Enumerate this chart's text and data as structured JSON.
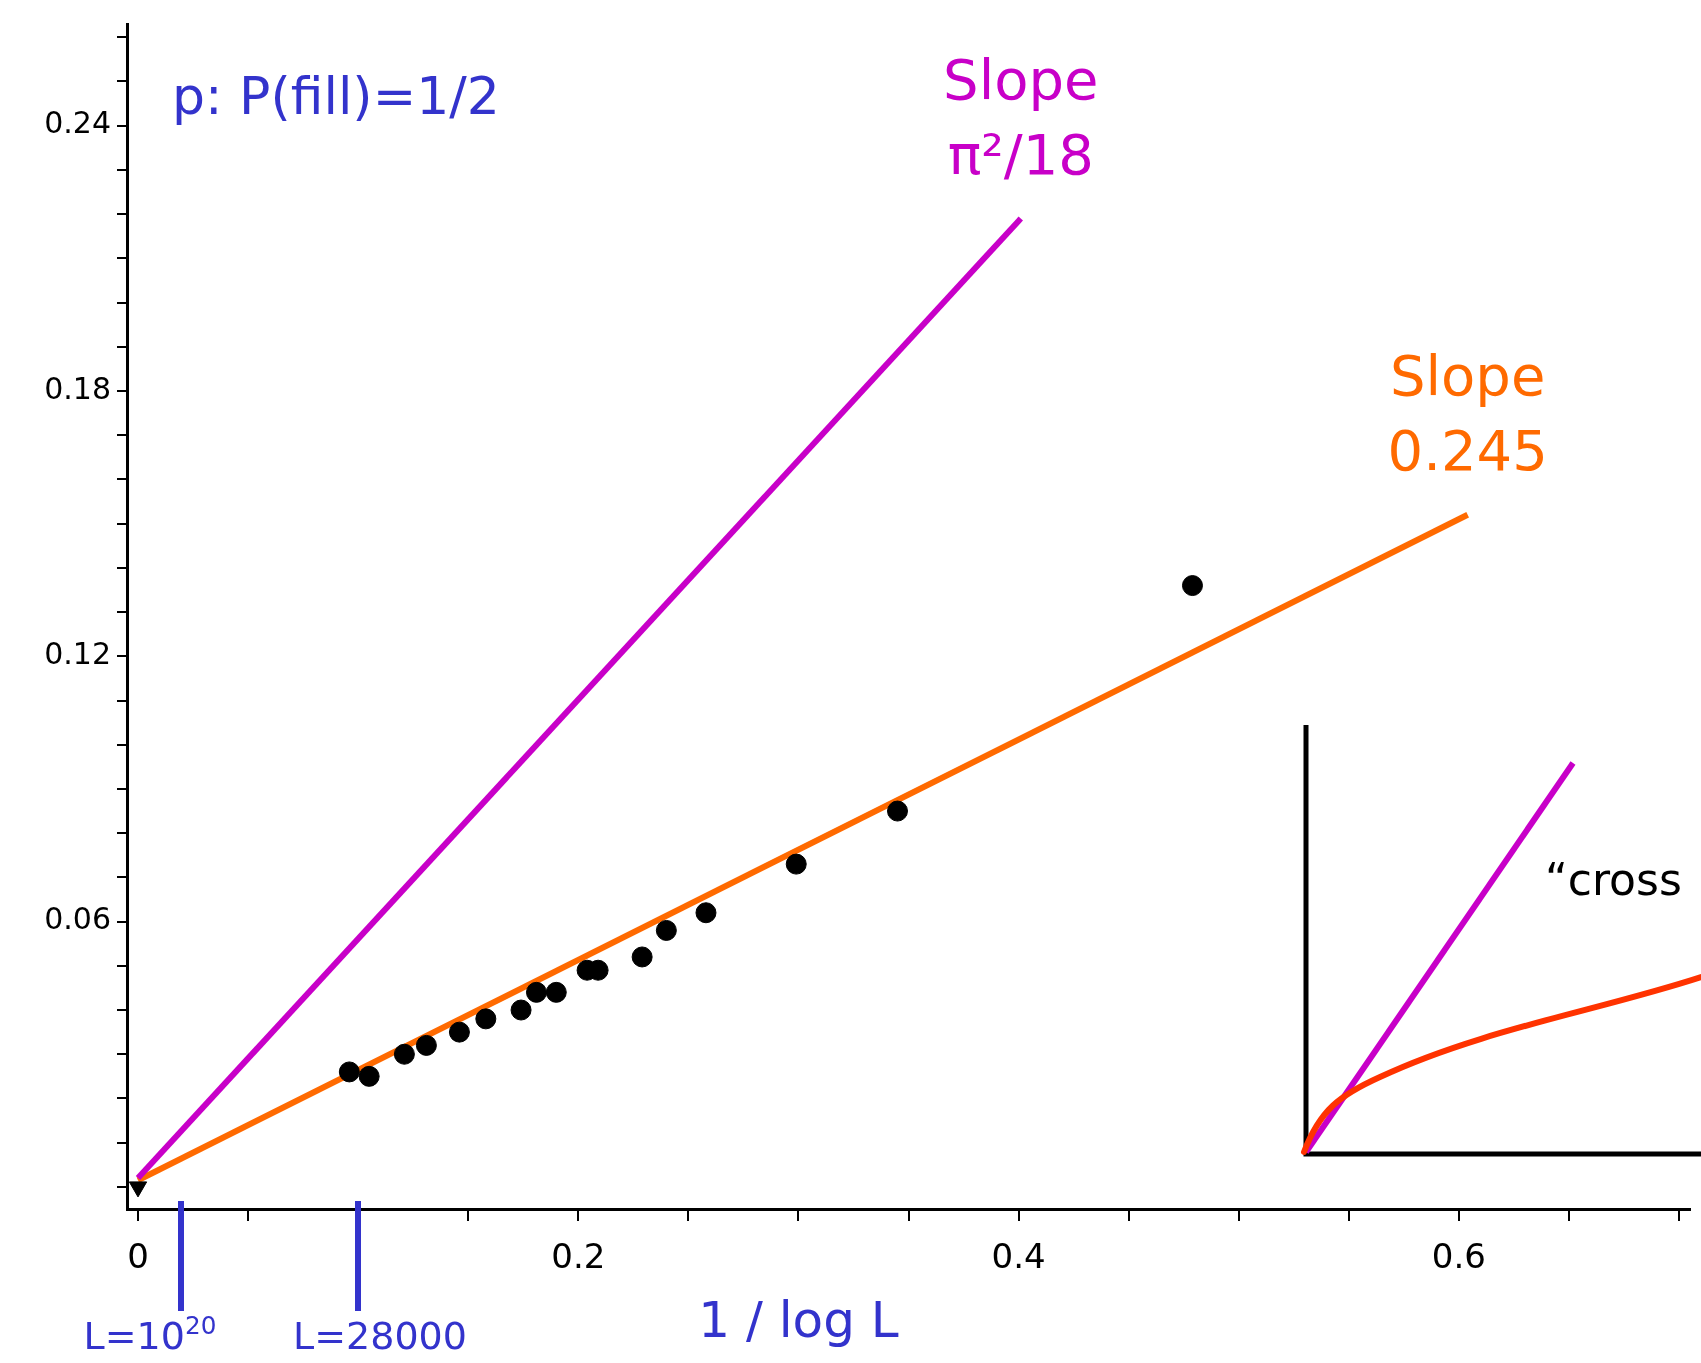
{
  "chart_data": {
    "type": "scatter",
    "xlabel": "1 / log L",
    "xlim": [
      -0.005,
      0.705
    ],
    "ylim": [
      -0.005,
      0.263
    ],
    "xticks": [
      {
        "value": 0,
        "label": "0"
      },
      {
        "value": 0.05,
        "label": null
      },
      {
        "value": 0.1,
        "label": null
      },
      {
        "value": 0.15,
        "label": null
      },
      {
        "value": 0.2,
        "label": "0.2"
      },
      {
        "value": 0.25,
        "label": null
      },
      {
        "value": 0.3,
        "label": null
      },
      {
        "value": 0.35,
        "label": null
      },
      {
        "value": 0.4,
        "label": "0.4"
      },
      {
        "value": 0.45,
        "label": null
      },
      {
        "value": 0.5,
        "label": null
      },
      {
        "value": 0.55,
        "label": null
      },
      {
        "value": 0.6,
        "label": "0.6"
      },
      {
        "value": 0.65,
        "label": null
      },
      {
        "value": 0.7,
        "label": null
      }
    ],
    "yticks": [
      {
        "value": 0,
        "label": null
      },
      {
        "value": 0.01,
        "label": null
      },
      {
        "value": 0.02,
        "label": null
      },
      {
        "value": 0.03,
        "label": null
      },
      {
        "value": 0.04,
        "label": null
      },
      {
        "value": 0.05,
        "label": null
      },
      {
        "value": 0.06,
        "label": "0.06"
      },
      {
        "value": 0.07,
        "label": null
      },
      {
        "value": 0.08,
        "label": null
      },
      {
        "value": 0.09,
        "label": null
      },
      {
        "value": 0.1,
        "label": null
      },
      {
        "value": 0.11,
        "label": null
      },
      {
        "value": 0.12,
        "label": "0.12"
      },
      {
        "value": 0.13,
        "label": null
      },
      {
        "value": 0.14,
        "label": null
      },
      {
        "value": 0.15,
        "label": null
      },
      {
        "value": 0.16,
        "label": null
      },
      {
        "value": 0.17,
        "label": null
      },
      {
        "value": 0.18,
        "label": "0.18"
      },
      {
        "value": 0.19,
        "label": null
      },
      {
        "value": 0.2,
        "label": null
      },
      {
        "value": 0.21,
        "label": null
      },
      {
        "value": 0.22,
        "label": null
      },
      {
        "value": 0.23,
        "label": null
      },
      {
        "value": 0.24,
        "label": "0.24"
      },
      {
        "value": 0.25,
        "label": null
      },
      {
        "value": 0.26,
        "label": null
      }
    ],
    "grid": false,
    "legend": false,
    "series": [
      {
        "color": "#000000",
        "marker": "circle",
        "x": [
          0.096,
          0.105,
          0.121,
          0.131,
          0.146,
          0.158,
          0.174,
          0.181,
          0.19,
          0.204,
          0.209,
          0.229,
          0.24,
          0.258,
          0.299,
          0.345,
          0.479
        ],
        "values": [
          0.026,
          0.025,
          0.03,
          0.032,
          0.035,
          0.038,
          0.04,
          0.044,
          0.044,
          0.049,
          0.049,
          0.052,
          0.058,
          0.062,
          0.073,
          0.085,
          0.136
        ]
      },
      {
        "color": "#000000",
        "marker": "triangle",
        "x": [
          0
        ],
        "values": [
          0
        ]
      },
      {
        "type": "line",
        "color": "#c800c8",
        "marker": "none",
        "x": [
          0,
          0.401
        ],
        "values": [
          0.002,
          0.219
        ]
      },
      {
        "type": "line",
        "color": "#ff6a00",
        "marker": "none",
        "x": [
          0,
          0.604
        ],
        "values": [
          0.0015,
          0.152
        ]
      }
    ],
    "annotations": [
      "p: P(fill)=1/2",
      "L=10$^{20}$",
      "L=28000",
      {
        "text": "Slope π²/18",
        "x": 0.401,
        "y": 0.219
      },
      {
        "text": "Slope 0.245",
        "x": 0.604,
        "y": 0.152
      },
      "“cross"
    ]
  }
}
